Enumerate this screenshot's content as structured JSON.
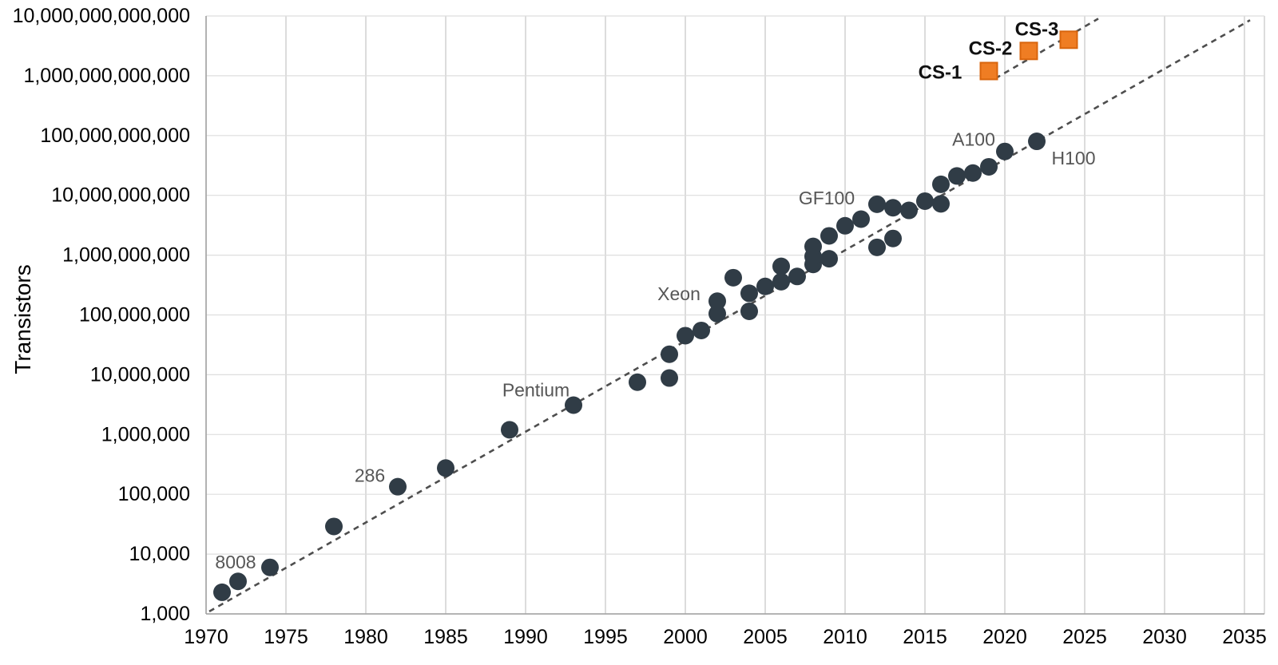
{
  "chart_data": {
    "type": "scatter",
    "title": "",
    "ylabel": "Transistors",
    "xlabel": "",
    "x_axis": {
      "min": 1970,
      "max": 2036.3,
      "tick_labels": [
        "1970",
        "1975",
        "1980",
        "1985",
        "1990",
        "1995",
        "2000",
        "2005",
        "2010",
        "2015",
        "2020",
        "2025",
        "2030",
        "2035"
      ],
      "tick_years": [
        1970,
        1975,
        1980,
        1985,
        1990,
        1995,
        2000,
        2005,
        2010,
        2015,
        2020,
        2025,
        2030,
        2035
      ]
    },
    "y_axis": {
      "scale": "log",
      "min_exp": 3,
      "max_exp": 13,
      "tick_labels": [
        "1,000",
        "10,000",
        "100,000",
        "1,000,000",
        "10,000,000",
        "100,000,000",
        "1,000,000,000",
        "10,000,000,000",
        "100,000,000,000",
        "1,000,000,000,000",
        "10,000,000,000,000"
      ],
      "tick_exps": [
        3,
        4,
        5,
        6,
        7,
        8,
        9,
        10,
        11,
        12,
        13
      ]
    },
    "grid": true,
    "legend": "none",
    "series": [
      {
        "name": "processors",
        "marker": "circle",
        "color": "#303c46",
        "label_style": {
          "color": "#565656",
          "weight": "normal",
          "size": 23
        },
        "points": [
          {
            "year": 1971,
            "transistors": 2300
          },
          {
            "year": 1972,
            "transistors": 3500,
            "label": "8008",
            "label_dx": -3,
            "label_dy": -24
          },
          {
            "year": 1974,
            "transistors": 6000
          },
          {
            "year": 1978,
            "transistors": 29000
          },
          {
            "year": 1982,
            "transistors": 134000,
            "label": "286",
            "label_dx": -35,
            "label_dy": -14
          },
          {
            "year": 1985,
            "transistors": 275000
          },
          {
            "year": 1989,
            "transistors": 1200000
          },
          {
            "year": 1993,
            "transistors": 3100000,
            "label": "Pentium",
            "label_dx": -47,
            "label_dy": -19
          },
          {
            "year": 1997,
            "transistors": 7500000
          },
          {
            "year": 1999,
            "transistors": 8800000
          },
          {
            "year": 1999,
            "transistors": 22000000
          },
          {
            "year": 2000,
            "transistors": 45000000
          },
          {
            "year": 2001,
            "transistors": 55000000
          },
          {
            "year": 2002,
            "transistors": 105000000
          },
          {
            "year": 2002,
            "transistors": 170000000,
            "label": "Xeon",
            "label_dx": -48,
            "label_dy": -9
          },
          {
            "year": 2003,
            "transistors": 420000000
          },
          {
            "year": 2004,
            "transistors": 115000000
          },
          {
            "year": 2004,
            "transistors": 230000000
          },
          {
            "year": 2005,
            "transistors": 300000000
          },
          {
            "year": 2006,
            "transistors": 360000000
          },
          {
            "year": 2006,
            "transistors": 650000000
          },
          {
            "year": 2007,
            "transistors": 440000000
          },
          {
            "year": 2008,
            "transistors": 700000000
          },
          {
            "year": 2008,
            "transistors": 950000000
          },
          {
            "year": 2008,
            "transistors": 1400000000
          },
          {
            "year": 2009,
            "transistors": 870000000
          },
          {
            "year": 2009,
            "transistors": 2100000000
          },
          {
            "year": 2010,
            "transistors": 3100000000,
            "label": "GF100",
            "label_dx": -23,
            "label_dy": -35
          },
          {
            "year": 2011,
            "transistors": 4000000000
          },
          {
            "year": 2012,
            "transistors": 1350000000
          },
          {
            "year": 2012,
            "transistors": 7100000000
          },
          {
            "year": 2013,
            "transistors": 1900000000
          },
          {
            "year": 2013,
            "transistors": 6200000000
          },
          {
            "year": 2014,
            "transistors": 5600000000
          },
          {
            "year": 2015,
            "transistors": 8000000000
          },
          {
            "year": 2016,
            "transistors": 7200000000
          },
          {
            "year": 2016,
            "transistors": 15300000000
          },
          {
            "year": 2017,
            "transistors": 21100000000
          },
          {
            "year": 2018,
            "transistors": 23600000000
          },
          {
            "year": 2019,
            "transistors": 30000000000
          },
          {
            "year": 2020,
            "transistors": 54200000000,
            "label": "A100",
            "label_dx": -39,
            "label_dy": -15
          },
          {
            "year": 2022,
            "transistors": 80000000000,
            "label": "H100",
            "label_dx": 46,
            "label_dy": 21
          }
        ]
      },
      {
        "name": "cerebras-wafer-scale",
        "marker": "square",
        "color": "#EF7D23",
        "stroke": "#D8650D",
        "label_style": {
          "color": "#111111",
          "weight": "bold",
          "size": 24
        },
        "points": [
          {
            "year": 2019,
            "transistors": 1200000000000,
            "label": "CS-1",
            "label_dx": -61,
            "label_dy": 2
          },
          {
            "year": 2021.5,
            "transistors": 2600000000000,
            "label": "CS-2",
            "label_dx": -48,
            "label_dy": -3
          },
          {
            "year": 2024,
            "transistors": 4000000000000,
            "label": "CS-3",
            "label_dx": -40,
            "label_dy": -13
          }
        ]
      }
    ],
    "trend_lines": [
      {
        "name": "moore-trend",
        "style": "dashed",
        "color": "#4e4e4e",
        "from": {
          "year": 1970.2,
          "transistors": 1100
        },
        "to": {
          "year": 2035.35,
          "transistors": 8500000000000
        }
      },
      {
        "name": "cerebras-trend",
        "style": "dashed",
        "color": "#4e4e4e",
        "from": {
          "year": 2019.4,
          "transistors": 900000000000
        },
        "to": {
          "year": 2025.85,
          "transistors": 9000000000000
        }
      }
    ],
    "colors": {
      "background": "#ffffff",
      "grid_vertical": "#c9c9c9",
      "grid_horizontal": "#dedede",
      "axis_line": "#9e9e9e",
      "tick_text": "#000000",
      "point_dark": "#303c46",
      "point_orange_fill": "#EF7D23",
      "point_orange_stroke": "#D8650D",
      "trend_line": "#4e4e4e"
    }
  }
}
